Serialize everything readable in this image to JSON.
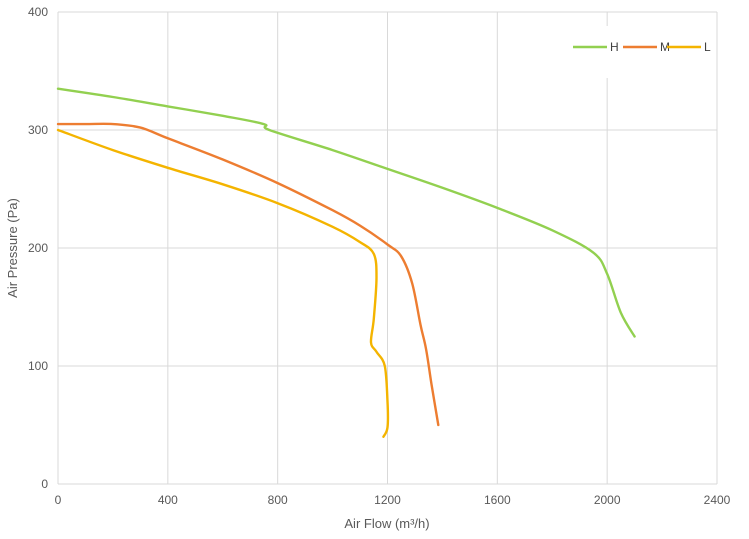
{
  "chart_data": {
    "type": "line",
    "xlabel": "Air Flow  (m³/h)",
    "ylabel": "Air Pressure  (Pa)",
    "xlim": [
      0,
      2400
    ],
    "ylim": [
      0,
      400
    ],
    "x_ticks": [
      0,
      400,
      800,
      1200,
      1600,
      2000,
      2400
    ],
    "y_ticks": [
      0,
      100,
      200,
      300,
      400
    ],
    "grid": true,
    "legend_position": "top-right",
    "series": [
      {
        "name": "H",
        "color": "#92d050",
        "points": [
          [
            0,
            335
          ],
          [
            200,
            328
          ],
          [
            400,
            320
          ],
          [
            600,
            312
          ],
          [
            750,
            305
          ],
          [
            770,
            300
          ],
          [
            1000,
            283
          ],
          [
            1200,
            267
          ],
          [
            1400,
            251
          ],
          [
            1600,
            234
          ],
          [
            1800,
            215
          ],
          [
            1950,
            196
          ],
          [
            2000,
            178
          ],
          [
            2050,
            145
          ],
          [
            2100,
            125
          ]
        ]
      },
      {
        "name": "M",
        "color": "#ed7d31",
        "points": [
          [
            0,
            305
          ],
          [
            100,
            305
          ],
          [
            200,
            305
          ],
          [
            300,
            302
          ],
          [
            400,
            293
          ],
          [
            600,
            275
          ],
          [
            800,
            255
          ],
          [
            1000,
            232
          ],
          [
            1100,
            219
          ],
          [
            1200,
            203
          ],
          [
            1250,
            193
          ],
          [
            1290,
            170
          ],
          [
            1320,
            135
          ],
          [
            1340,
            115
          ],
          [
            1360,
            85
          ],
          [
            1385,
            50
          ]
        ]
      },
      {
        "name": "L",
        "color": "#f4b400",
        "points": [
          [
            0,
            300
          ],
          [
            200,
            283
          ],
          [
            400,
            268
          ],
          [
            600,
            254
          ],
          [
            800,
            238
          ],
          [
            1000,
            218
          ],
          [
            1100,
            205
          ],
          [
            1150,
            195
          ],
          [
            1160,
            175
          ],
          [
            1150,
            140
          ],
          [
            1140,
            120
          ],
          [
            1160,
            112
          ],
          [
            1190,
            100
          ],
          [
            1200,
            70
          ],
          [
            1200,
            48
          ],
          [
            1185,
            40
          ]
        ]
      }
    ]
  }
}
